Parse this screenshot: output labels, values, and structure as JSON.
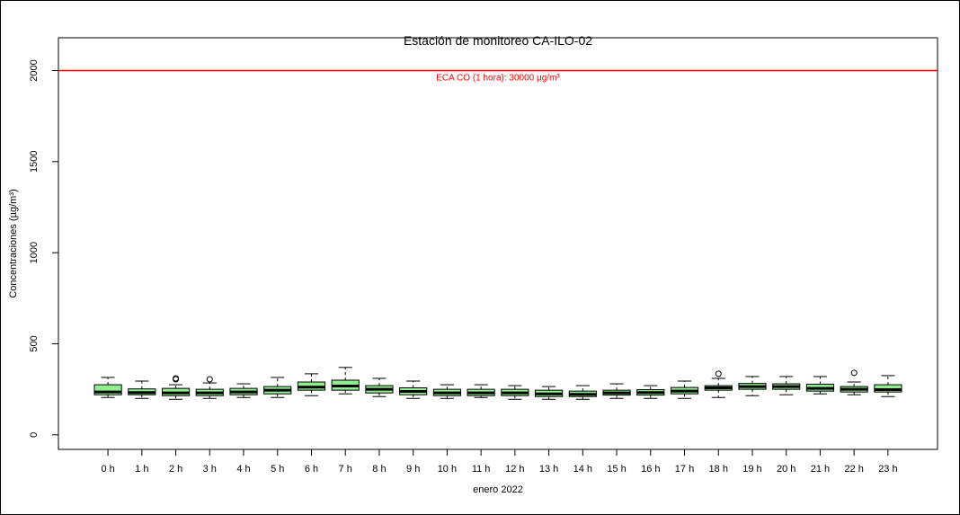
{
  "chart_data": {
    "type": "boxplot",
    "title": "Estación de monitoreo CA-ILO-02",
    "xlabel": "enero 2022",
    "ylabel": "Concentraciones (µg/m³)",
    "categories": [
      "0 h",
      "1 h",
      "2 h",
      "3 h",
      "4 h",
      "5 h",
      "6 h",
      "7 h",
      "8 h",
      "9 h",
      "10 h",
      "11 h",
      "12 h",
      "13 h",
      "14 h",
      "15 h",
      "16 h",
      "17 h",
      "18 h",
      "19 h",
      "20 h",
      "21 h",
      "22 h",
      "23 h"
    ],
    "color": "#90ee90",
    "boxes": [
      {
        "min": 205,
        "q1": 220,
        "median": 235,
        "q3": 275,
        "max": 315,
        "outliers": []
      },
      {
        "min": 200,
        "q1": 220,
        "median": 232,
        "q3": 252,
        "max": 295,
        "outliers": []
      },
      {
        "min": 195,
        "q1": 215,
        "median": 230,
        "q3": 255,
        "max": 275,
        "outliers": [
          305,
          310
        ]
      },
      {
        "min": 200,
        "q1": 215,
        "median": 230,
        "q3": 250,
        "max": 285,
        "outliers": [
          305
        ]
      },
      {
        "min": 205,
        "q1": 220,
        "median": 235,
        "q3": 255,
        "max": 280,
        "outliers": []
      },
      {
        "min": 205,
        "q1": 225,
        "median": 245,
        "q3": 265,
        "max": 315,
        "outliers": []
      },
      {
        "min": 215,
        "q1": 245,
        "median": 262,
        "q3": 290,
        "max": 335,
        "outliers": []
      },
      {
        "min": 225,
        "q1": 245,
        "median": 268,
        "q3": 300,
        "max": 370,
        "outliers": []
      },
      {
        "min": 210,
        "q1": 230,
        "median": 250,
        "q3": 270,
        "max": 310,
        "outliers": []
      },
      {
        "min": 200,
        "q1": 220,
        "median": 238,
        "q3": 258,
        "max": 295,
        "outliers": []
      },
      {
        "min": 200,
        "q1": 215,
        "median": 230,
        "q3": 250,
        "max": 275,
        "outliers": []
      },
      {
        "min": 205,
        "q1": 215,
        "median": 230,
        "q3": 250,
        "max": 275,
        "outliers": []
      },
      {
        "min": 195,
        "q1": 215,
        "median": 230,
        "q3": 250,
        "max": 270,
        "outliers": []
      },
      {
        "min": 195,
        "q1": 210,
        "median": 225,
        "q3": 245,
        "max": 265,
        "outliers": []
      },
      {
        "min": 195,
        "q1": 210,
        "median": 222,
        "q3": 240,
        "max": 270,
        "outliers": []
      },
      {
        "min": 200,
        "q1": 218,
        "median": 230,
        "q3": 245,
        "max": 280,
        "outliers": []
      },
      {
        "min": 200,
        "q1": 218,
        "median": 232,
        "q3": 248,
        "max": 270,
        "outliers": []
      },
      {
        "min": 200,
        "q1": 225,
        "median": 240,
        "q3": 260,
        "max": 295,
        "outliers": []
      },
      {
        "min": 205,
        "q1": 245,
        "median": 258,
        "q3": 270,
        "max": 310,
        "outliers": [
          335
        ]
      },
      {
        "min": 215,
        "q1": 250,
        "median": 265,
        "q3": 282,
        "max": 320,
        "outliers": []
      },
      {
        "min": 220,
        "q1": 250,
        "median": 265,
        "q3": 280,
        "max": 320,
        "outliers": []
      },
      {
        "min": 225,
        "q1": 240,
        "median": 255,
        "q3": 278,
        "max": 320,
        "outliers": []
      },
      {
        "min": 220,
        "q1": 235,
        "median": 250,
        "q3": 265,
        "max": 290,
        "outliers": [
          340
        ]
      },
      {
        "min": 210,
        "q1": 235,
        "median": 248,
        "q3": 275,
        "max": 325,
        "outliers": []
      }
    ],
    "ylim": [
      -80,
      2180
    ],
    "yticks": [
      0,
      500,
      1000,
      1500,
      2000
    ],
    "reference_line": {
      "value": 2000,
      "label": "ECA CO (1 hora): 30000 µg/m³",
      "color": "#ff0000"
    }
  }
}
